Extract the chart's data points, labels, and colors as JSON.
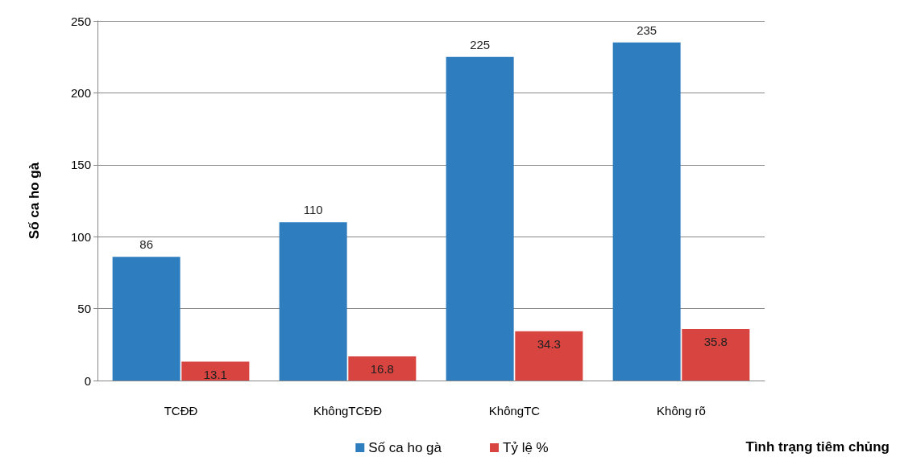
{
  "chart_data": {
    "type": "bar",
    "ylabel": "Số ca ho gà",
    "xlabel": "Tình trạng tiêm chủng",
    "categories": [
      "TCĐĐ",
      "KhôngTCĐĐ",
      "KhôngTC",
      "Không rõ"
    ],
    "series": [
      {
        "name": "Số ca ho gà",
        "color": "#2e7ebf",
        "values": [
          86,
          110,
          225,
          235
        ]
      },
      {
        "name": "Tỷ lệ %",
        "color": "#d8443f",
        "values": [
          13.1,
          16.8,
          34.3,
          35.8
        ]
      }
    ],
    "ylim": [
      0,
      250
    ],
    "yticks": [
      0,
      50,
      100,
      150,
      200,
      250
    ],
    "grid": "y",
    "legend": "bottom",
    "data_labels": true
  }
}
